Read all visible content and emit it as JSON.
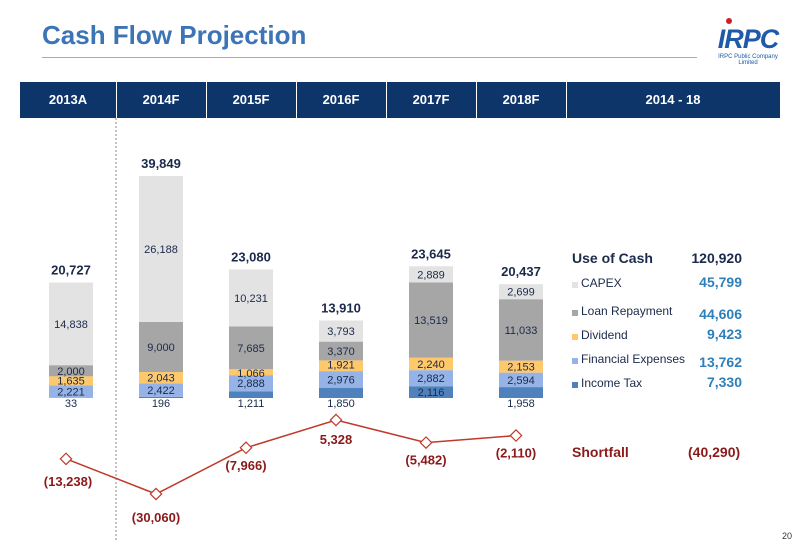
{
  "title": "Cash Flow Projection",
  "logo": {
    "name": "IRPC",
    "subtitle": "IRPC Public Company Limited"
  },
  "header": {
    "columns": [
      "2013A",
      "2014F",
      "2015F",
      "2016F",
      "2017F",
      "2018F",
      "2014 - 18"
    ]
  },
  "chart_data": {
    "type": "bar",
    "stacked": true,
    "categories": [
      "2013A",
      "2014F",
      "2015F",
      "2016F",
      "2017F",
      "2018F"
    ],
    "series": [
      {
        "name": "Income Tax",
        "values": [
          33,
          196,
          1211,
          1850,
          2116,
          1958
        ]
      },
      {
        "name": "Financial Expenses",
        "values": [
          2221,
          2422,
          2888,
          2976,
          2882,
          2594
        ]
      },
      {
        "name": "Dividend",
        "values": [
          1635,
          2043,
          1066,
          1921,
          2240,
          2153
        ]
      },
      {
        "name": "Loan Repayment",
        "values": [
          2000,
          9000,
          7685,
          3370,
          13519,
          11033
        ]
      },
      {
        "name": "CAPEX",
        "values": [
          14838,
          26188,
          10231,
          3793,
          2889,
          2699
        ]
      }
    ],
    "value_labels": [
      [
        "33",
        "2,221",
        "1,635",
        "2,000",
        "14,838"
      ],
      [
        "196",
        "2,422",
        "2,043",
        "9,000",
        "26,188"
      ],
      [
        "1,211",
        "2,888",
        "1,066",
        "7,685",
        "10,231"
      ],
      [
        "1,850",
        "2,976",
        "1,921",
        "3,370",
        "3,793"
      ],
      [
        "2,116",
        "2,882",
        "2,240",
        "13,519",
        "2,889"
      ],
      [
        "1,958",
        "2,594",
        "2,153",
        "11,033",
        "2,699"
      ]
    ],
    "totals": [
      20727,
      39849,
      23080,
      13910,
      23645,
      20437
    ],
    "total_labels": [
      "20,727",
      "39,849",
      "23,080",
      "13,910",
      "23,645",
      "20,437"
    ],
    "shortfall": {
      "name": "Shortfall",
      "values": [
        -13238,
        -30060,
        -7966,
        5328,
        -5482,
        -2110
      ],
      "labels": [
        "(13,238)",
        "(30,060)",
        "(7,966)",
        "5,328",
        "(5,482)",
        "(2,110)"
      ]
    },
    "colors": {
      "Income Tax": "#4f81bd",
      "Financial Expenses": "#95b3e6",
      "Dividend": "#ffc96b",
      "Loan Repayment": "#a6a6a6",
      "CAPEX": "#e3e3e3",
      "shortfall_line": "#c0392b"
    },
    "legend_position": "right",
    "grid": false
  },
  "legend": {
    "heading": "Use of Cash",
    "total": "120,920",
    "items": [
      {
        "label": "CAPEX",
        "value": "45,799"
      },
      {
        "label": "Loan Repayment",
        "value": "44,606"
      },
      {
        "label": "Dividend",
        "value": "9,423"
      },
      {
        "label": "Financial Expenses",
        "value": "13,762"
      },
      {
        "label": "Income Tax",
        "value": "7,330"
      }
    ]
  },
  "shortfall_summary": {
    "label": "Shortfall",
    "value": "(40,290)"
  },
  "page_number": "20"
}
